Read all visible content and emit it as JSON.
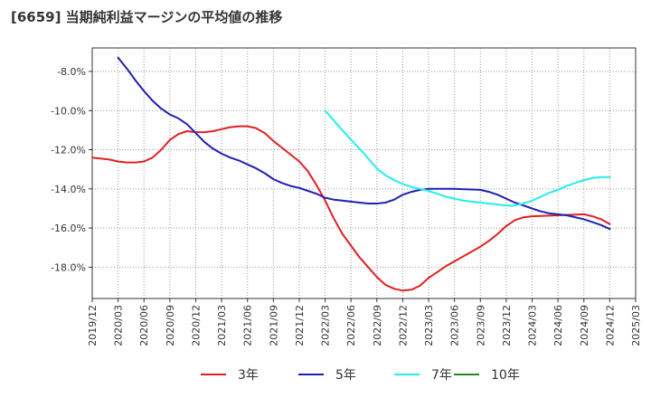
{
  "chart_data": {
    "type": "line",
    "title": "[6659]  当期純利益マージンの平均値の推移",
    "xlabel": "",
    "ylabel": "",
    "x_ticks": [
      "2019/12",
      "2020/03",
      "2020/06",
      "2020/09",
      "2020/12",
      "2021/03",
      "2021/06",
      "2021/09",
      "2021/12",
      "2022/03",
      "2022/06",
      "2022/09",
      "2022/12",
      "2023/03",
      "2023/06",
      "2023/09",
      "2023/12",
      "2024/03",
      "2024/06",
      "2024/09",
      "2024/12",
      "2025/03"
    ],
    "y_ticks": [
      -8,
      -10,
      -12,
      -14,
      -16,
      -18
    ],
    "y_tick_labels": [
      "-8.0%",
      "-10.0%",
      "-12.0%",
      "-14.0%",
      "-16.0%",
      "-18.0%"
    ],
    "ylim": [
      -19.6,
      -6.8
    ],
    "grid": true,
    "legend_position": "bottom",
    "series": [
      {
        "name": "3年",
        "color": "#e02020",
        "points": [
          [
            "2019/12",
            -12.4
          ],
          [
            "2020/02",
            -12.5
          ],
          [
            "2020/03",
            -12.6
          ],
          [
            "2020/04",
            -12.65
          ],
          [
            "2020/05",
            -12.65
          ],
          [
            "2020/06",
            -12.6
          ],
          [
            "2020/07",
            -12.4
          ],
          [
            "2020/08",
            -12.0
          ],
          [
            "2020/09",
            -11.5
          ],
          [
            "2020/10",
            -11.2
          ],
          [
            "2020/11",
            -11.05
          ],
          [
            "2020/12",
            -11.1
          ],
          [
            "2021/01",
            -11.1
          ],
          [
            "2021/02",
            -11.05
          ],
          [
            "2021/03",
            -10.95
          ],
          [
            "2021/04",
            -10.85
          ],
          [
            "2021/05",
            -10.8
          ],
          [
            "2021/06",
            -10.8
          ],
          [
            "2021/07",
            -10.9
          ],
          [
            "2021/08",
            -11.15
          ],
          [
            "2021/09",
            -11.55
          ],
          [
            "2021/10",
            -11.9
          ],
          [
            "2021/11",
            -12.25
          ],
          [
            "2021/12",
            -12.6
          ],
          [
            "2022/01",
            -13.1
          ],
          [
            "2022/02",
            -13.8
          ],
          [
            "2022/03",
            -14.6
          ],
          [
            "2022/04",
            -15.5
          ],
          [
            "2022/05",
            -16.3
          ],
          [
            "2022/06",
            -16.9
          ],
          [
            "2022/07",
            -17.5
          ],
          [
            "2022/08",
            -18.0
          ],
          [
            "2022/09",
            -18.5
          ],
          [
            "2022/10",
            -18.9
          ],
          [
            "2022/11",
            -19.1
          ],
          [
            "2022/12",
            -19.2
          ],
          [
            "2023/01",
            -19.15
          ],
          [
            "2023/02",
            -18.95
          ],
          [
            "2023/03",
            -18.55
          ],
          [
            "2023/04",
            -18.25
          ],
          [
            "2023/05",
            -17.95
          ],
          [
            "2023/06",
            -17.7
          ],
          [
            "2023/07",
            -17.45
          ],
          [
            "2023/08",
            -17.2
          ],
          [
            "2023/09",
            -16.95
          ],
          [
            "2023/10",
            -16.65
          ],
          [
            "2023/11",
            -16.3
          ],
          [
            "2023/12",
            -15.9
          ],
          [
            "2024/01",
            -15.6
          ],
          [
            "2024/02",
            -15.45
          ],
          [
            "2024/03",
            -15.4
          ],
          [
            "2024/06",
            -15.35
          ],
          [
            "2024/09",
            -15.3
          ],
          [
            "2024/10",
            -15.4
          ],
          [
            "2024/11",
            -15.55
          ],
          [
            "2024/12",
            -15.8
          ]
        ]
      },
      {
        "name": "5年",
        "color": "#1f1fb4",
        "points": [
          [
            "2020/03",
            -7.3
          ],
          [
            "2020/04",
            -7.85
          ],
          [
            "2020/05",
            -8.45
          ],
          [
            "2020/06",
            -9.0
          ],
          [
            "2020/07",
            -9.5
          ],
          [
            "2020/08",
            -9.9
          ],
          [
            "2020/09",
            -10.2
          ],
          [
            "2020/10",
            -10.4
          ],
          [
            "2020/11",
            -10.7
          ],
          [
            "2020/12",
            -11.15
          ],
          [
            "2021/01",
            -11.6
          ],
          [
            "2021/02",
            -11.95
          ],
          [
            "2021/03",
            -12.2
          ],
          [
            "2021/04",
            -12.4
          ],
          [
            "2021/05",
            -12.55
          ],
          [
            "2021/06",
            -12.75
          ],
          [
            "2021/07",
            -12.95
          ],
          [
            "2021/08",
            -13.2
          ],
          [
            "2021/09",
            -13.5
          ],
          [
            "2021/10",
            -13.7
          ],
          [
            "2021/11",
            -13.85
          ],
          [
            "2021/12",
            -13.95
          ],
          [
            "2022/01",
            -14.1
          ],
          [
            "2022/02",
            -14.25
          ],
          [
            "2022/03",
            -14.45
          ],
          [
            "2022/04",
            -14.55
          ],
          [
            "2022/05",
            -14.6
          ],
          [
            "2022/06",
            -14.65
          ],
          [
            "2022/07",
            -14.7
          ],
          [
            "2022/08",
            -14.75
          ],
          [
            "2022/09",
            -14.75
          ],
          [
            "2022/10",
            -14.7
          ],
          [
            "2022/11",
            -14.55
          ],
          [
            "2022/12",
            -14.3
          ],
          [
            "2023/01",
            -14.15
          ],
          [
            "2023/02",
            -14.05
          ],
          [
            "2023/03",
            -14.0
          ],
          [
            "2023/06",
            -14.0
          ],
          [
            "2023/09",
            -14.05
          ],
          [
            "2023/10",
            -14.15
          ],
          [
            "2023/11",
            -14.3
          ],
          [
            "2023/12",
            -14.5
          ],
          [
            "2024/01",
            -14.7
          ],
          [
            "2024/02",
            -14.85
          ],
          [
            "2024/03",
            -15.0
          ],
          [
            "2024/04",
            -15.15
          ],
          [
            "2024/05",
            -15.25
          ],
          [
            "2024/06",
            -15.3
          ],
          [
            "2024/07",
            -15.35
          ],
          [
            "2024/08",
            -15.45
          ],
          [
            "2024/09",
            -15.55
          ],
          [
            "2024/10",
            -15.7
          ],
          [
            "2024/11",
            -15.85
          ],
          [
            "2024/12",
            -16.05
          ]
        ]
      },
      {
        "name": "7年",
        "color": "#22eeee",
        "points": [
          [
            "2022/03",
            -10.0
          ],
          [
            "2022/04",
            -10.5
          ],
          [
            "2022/05",
            -11.0
          ],
          [
            "2022/06",
            -11.5
          ],
          [
            "2022/07",
            -11.95
          ],
          [
            "2022/08",
            -12.45
          ],
          [
            "2022/09",
            -12.95
          ],
          [
            "2022/10",
            -13.3
          ],
          [
            "2022/11",
            -13.55
          ],
          [
            "2022/12",
            -13.75
          ],
          [
            "2023/01",
            -13.9
          ],
          [
            "2023/02",
            -14.0
          ],
          [
            "2023/03",
            -14.1
          ],
          [
            "2023/04",
            -14.25
          ],
          [
            "2023/05",
            -14.4
          ],
          [
            "2023/06",
            -14.5
          ],
          [
            "2023/07",
            -14.6
          ],
          [
            "2023/08",
            -14.65
          ],
          [
            "2023/09",
            -14.7
          ],
          [
            "2023/10",
            -14.75
          ],
          [
            "2023/11",
            -14.8
          ],
          [
            "2023/12",
            -14.85
          ],
          [
            "2024/01",
            -14.85
          ],
          [
            "2024/02",
            -14.75
          ],
          [
            "2024/03",
            -14.6
          ],
          [
            "2024/04",
            -14.4
          ],
          [
            "2024/05",
            -14.2
          ],
          [
            "2024/06",
            -14.05
          ],
          [
            "2024/07",
            -13.85
          ],
          [
            "2024/08",
            -13.7
          ],
          [
            "2024/09",
            -13.55
          ],
          [
            "2024/10",
            -13.45
          ],
          [
            "2024/11",
            -13.4
          ],
          [
            "2024/12",
            -13.4
          ]
        ]
      },
      {
        "name": "10年",
        "color": "#228822",
        "points": []
      }
    ]
  }
}
